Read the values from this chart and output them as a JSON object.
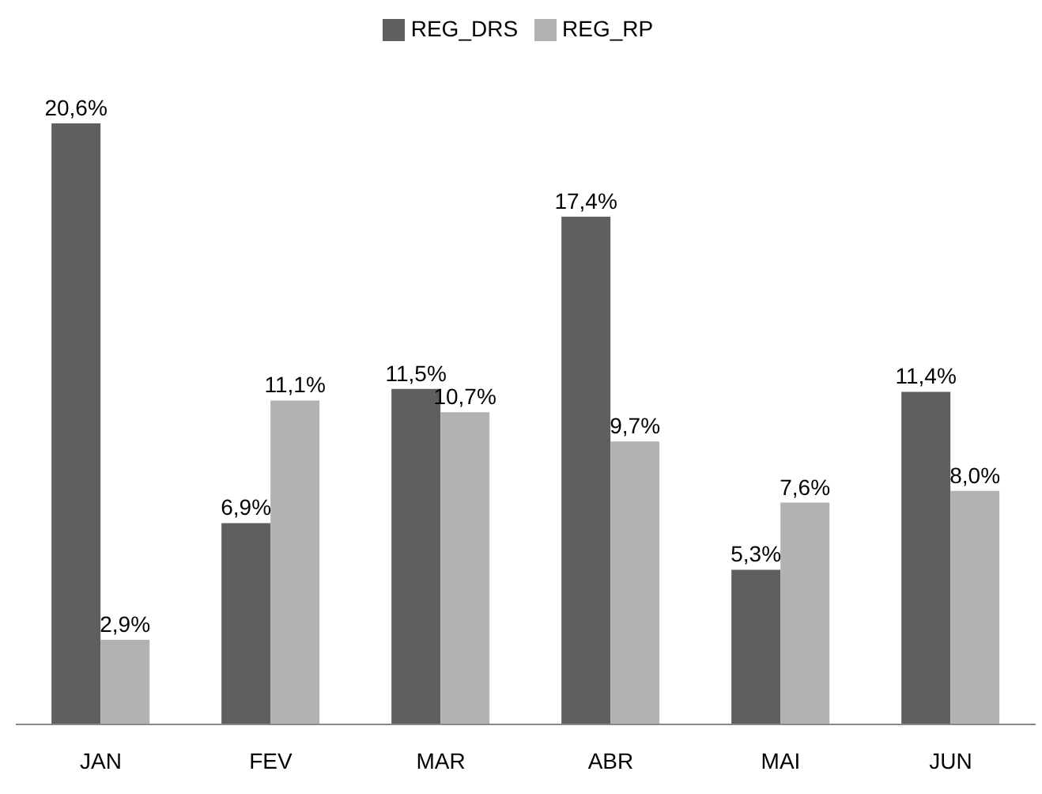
{
  "chart_data": {
    "type": "bar",
    "categories": [
      "JAN",
      "FEV",
      "MAR",
      "ABR",
      "MAI",
      "JUN"
    ],
    "series": [
      {
        "name": "REG_DRS",
        "color": "#5f5f5f",
        "values": [
          20.6,
          6.9,
          11.5,
          17.4,
          5.3,
          11.4
        ],
        "value_labels": [
          "20,6%",
          "6,9%",
          "11,5%",
          "17,4%",
          "5,3%",
          "11,4%"
        ]
      },
      {
        "name": "REG_RP",
        "color": "#b2b2b2",
        "values": [
          2.9,
          11.1,
          10.7,
          9.7,
          7.6,
          8.0
        ],
        "value_labels": [
          "2,9%",
          "11,1%",
          "10,7%",
          "9,7%",
          "7,6%",
          "8,0%"
        ]
      }
    ],
    "legend": "top",
    "grid": false
  }
}
